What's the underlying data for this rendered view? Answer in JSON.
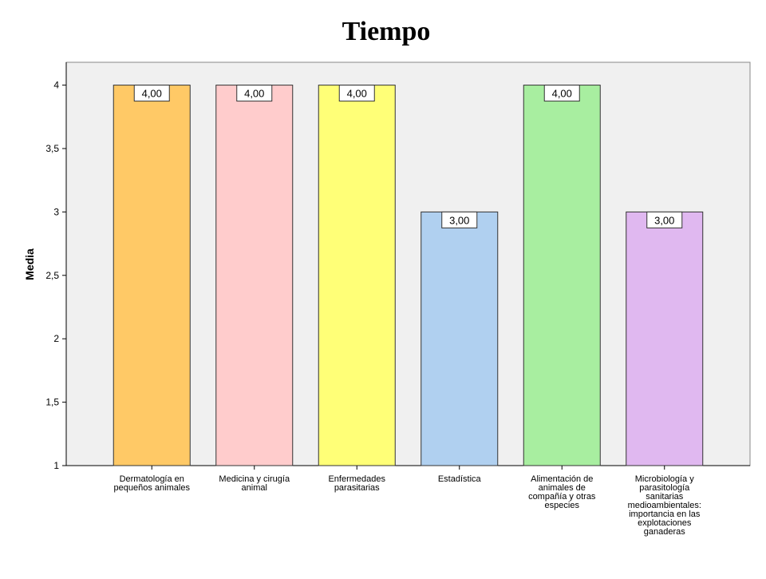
{
  "chart_data": {
    "type": "bar",
    "title": "Tiempo",
    "y_label": "Media",
    "categories": [
      "Dermatología en pequeños animales",
      "Medicina y cirugía animal",
      "Enfermedades parasitarias",
      "Estadística",
      "Alimentación de animales de compañía y otras especies",
      "Microbiología y parasitología sanitarias medioambientales: importancia en las explotaciones ganaderas"
    ],
    "values": [
      4,
      4,
      4,
      3,
      4,
      3
    ],
    "value_labels": [
      "4,00",
      "4,00",
      "4,00",
      "3,00",
      "4,00",
      "3,00"
    ],
    "colors": [
      "#ffc966",
      "#ffcccc",
      "#ffff77",
      "#b0d0f0",
      "#a8eea0",
      "#e0b8f0"
    ],
    "ylim": [
      1,
      4.18
    ],
    "yticks": [
      1,
      {
        "value": 1.5,
        "label": "1,5"
      },
      2,
      {
        "value": 2.5,
        "label": "2,5"
      },
      3,
      {
        "value": 3.5,
        "label": "3,5"
      },
      4
    ]
  }
}
